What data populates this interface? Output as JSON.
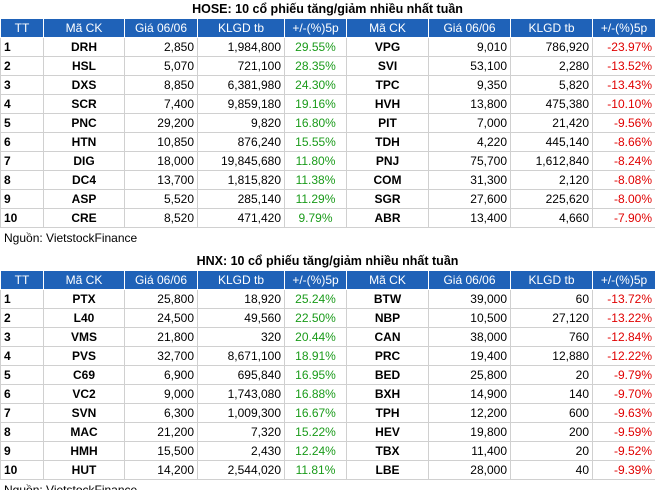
{
  "headers": [
    "TT",
    "Mã CK",
    "Giá 06/06",
    "KLGD tb",
    "+/-(%)5p",
    "Mã CK",
    "Giá 06/06",
    "KLGD tb",
    "+/-(%)5p"
  ],
  "hose": {
    "title": "HOSE: 10 cổ phiếu tăng/giảm nhiều nhất tuần",
    "source": "Nguồn: VietstockFinance",
    "rows": [
      {
        "tt": "1",
        "g_sym": "DRH",
        "g_price": "2,850",
        "g_vol": "1,984,800",
        "g_pct": "29.55%",
        "l_sym": "VPG",
        "l_price": "9,010",
        "l_vol": "786,920",
        "l_pct": "-23.97%"
      },
      {
        "tt": "2",
        "g_sym": "HSL",
        "g_price": "5,070",
        "g_vol": "721,100",
        "g_pct": "28.35%",
        "l_sym": "SVI",
        "l_price": "53,100",
        "l_vol": "2,280",
        "l_pct": "-13.52%"
      },
      {
        "tt": "3",
        "g_sym": "DXS",
        "g_price": "8,850",
        "g_vol": "6,381,980",
        "g_pct": "24.30%",
        "l_sym": "TPC",
        "l_price": "9,350",
        "l_vol": "5,820",
        "l_pct": "-13.43%"
      },
      {
        "tt": "4",
        "g_sym": "SCR",
        "g_price": "7,400",
        "g_vol": "9,859,180",
        "g_pct": "19.16%",
        "l_sym": "HVH",
        "l_price": "13,800",
        "l_vol": "475,380",
        "l_pct": "-10.10%"
      },
      {
        "tt": "5",
        "g_sym": "PNC",
        "g_price": "29,200",
        "g_vol": "9,820",
        "g_pct": "16.80%",
        "l_sym": "PIT",
        "l_price": "7,000",
        "l_vol": "21,420",
        "l_pct": "-9.56%"
      },
      {
        "tt": "6",
        "g_sym": "HTN",
        "g_price": "10,850",
        "g_vol": "876,240",
        "g_pct": "15.55%",
        "l_sym": "TDH",
        "l_price": "4,220",
        "l_vol": "445,140",
        "l_pct": "-8.66%"
      },
      {
        "tt": "7",
        "g_sym": "DIG",
        "g_price": "18,000",
        "g_vol": "19,845,680",
        "g_pct": "11.80%",
        "l_sym": "PNJ",
        "l_price": "75,700",
        "l_vol": "1,612,840",
        "l_pct": "-8.24%"
      },
      {
        "tt": "8",
        "g_sym": "DC4",
        "g_price": "13,700",
        "g_vol": "1,815,820",
        "g_pct": "11.38%",
        "l_sym": "COM",
        "l_price": "31,300",
        "l_vol": "2,120",
        "l_pct": "-8.08%"
      },
      {
        "tt": "9",
        "g_sym": "ASP",
        "g_price": "5,520",
        "g_vol": "285,140",
        "g_pct": "11.29%",
        "l_sym": "SGR",
        "l_price": "27,600",
        "l_vol": "225,620",
        "l_pct": "-8.00%"
      },
      {
        "tt": "10",
        "g_sym": "CRE",
        "g_price": "8,520",
        "g_vol": "471,420",
        "g_pct": "9.79%",
        "l_sym": "ABR",
        "l_price": "13,400",
        "l_vol": "4,660",
        "l_pct": "-7.90%"
      }
    ]
  },
  "hnx": {
    "title": "HNX: 10 cổ phiếu tăng/giảm nhiều nhất tuần",
    "source": "Nguồn: VietstockFinance",
    "rows": [
      {
        "tt": "1",
        "g_sym": "PTX",
        "g_price": "25,800",
        "g_vol": "18,920",
        "g_pct": "25.24%",
        "l_sym": "BTW",
        "l_price": "39,000",
        "l_vol": "60",
        "l_pct": "-13.72%"
      },
      {
        "tt": "2",
        "g_sym": "L40",
        "g_price": "24,500",
        "g_vol": "49,560",
        "g_pct": "22.50%",
        "l_sym": "NBP",
        "l_price": "10,500",
        "l_vol": "27,120",
        "l_pct": "-13.22%"
      },
      {
        "tt": "3",
        "g_sym": "VMS",
        "g_price": "21,800",
        "g_vol": "320",
        "g_pct": "20.44%",
        "l_sym": "CAN",
        "l_price": "38,000",
        "l_vol": "760",
        "l_pct": "-12.84%"
      },
      {
        "tt": "4",
        "g_sym": "PVS",
        "g_price": "32,700",
        "g_vol": "8,671,100",
        "g_pct": "18.91%",
        "l_sym": "PRC",
        "l_price": "19,400",
        "l_vol": "12,880",
        "l_pct": "-12.22%"
      },
      {
        "tt": "5",
        "g_sym": "C69",
        "g_price": "6,900",
        "g_vol": "695,840",
        "g_pct": "16.95%",
        "l_sym": "BED",
        "l_price": "25,800",
        "l_vol": "20",
        "l_pct": "-9.79%"
      },
      {
        "tt": "6",
        "g_sym": "VC2",
        "g_price": "9,000",
        "g_vol": "1,743,080",
        "g_pct": "16.88%",
        "l_sym": "BXH",
        "l_price": "14,900",
        "l_vol": "140",
        "l_pct": "-9.70%"
      },
      {
        "tt": "7",
        "g_sym": "SVN",
        "g_price": "6,300",
        "g_vol": "1,009,300",
        "g_pct": "16.67%",
        "l_sym": "TPH",
        "l_price": "12,200",
        "l_vol": "600",
        "l_pct": "-9.63%"
      },
      {
        "tt": "8",
        "g_sym": "MAC",
        "g_price": "21,200",
        "g_vol": "7,320",
        "g_pct": "15.22%",
        "l_sym": "HEV",
        "l_price": "19,800",
        "l_vol": "200",
        "l_pct": "-9.59%"
      },
      {
        "tt": "9",
        "g_sym": "HMH",
        "g_price": "15,500",
        "g_vol": "2,430",
        "g_pct": "12.24%",
        "l_sym": "TBX",
        "l_price": "11,400",
        "l_vol": "20",
        "l_pct": "-9.52%"
      },
      {
        "tt": "10",
        "g_sym": "HUT",
        "g_price": "14,200",
        "g_vol": "2,544,020",
        "g_pct": "11.81%",
        "l_sym": "LBE",
        "l_price": "28,000",
        "l_vol": "40",
        "l_pct": "-9.39%"
      }
    ]
  }
}
